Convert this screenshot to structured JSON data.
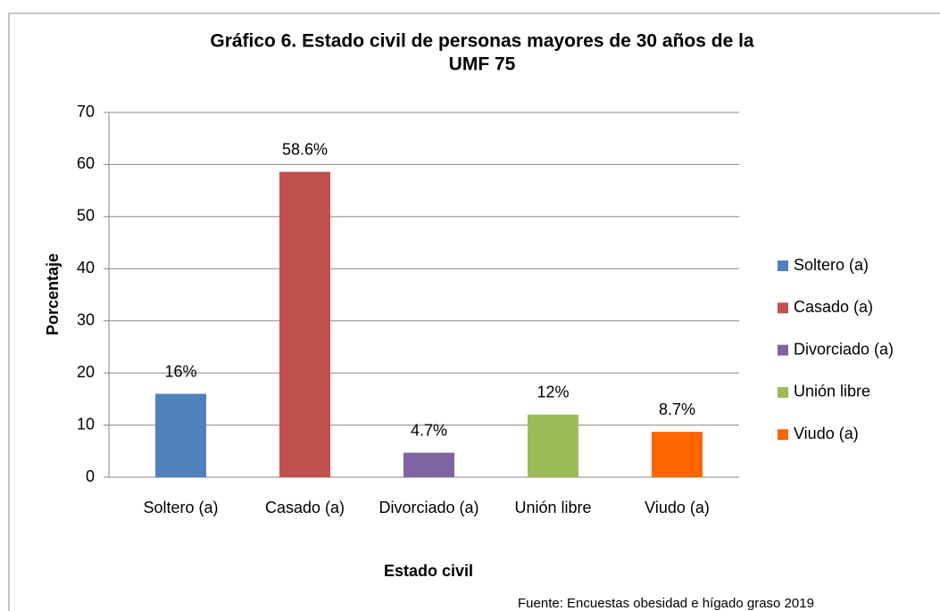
{
  "chart_data": {
    "type": "bar",
    "title": [
      "Gráfico 6. Estado civil de personas mayores de 30 años de la",
      "UMF 75"
    ],
    "x_label": "Estado civil",
    "y_label": "Porcentaje",
    "categories": [
      "Soltero (a)",
      "Casado (a)",
      "Divorciado (a)",
      "Unión libre",
      "Viudo (a)"
    ],
    "values": [
      16,
      58.6,
      4.7,
      12,
      8.7
    ],
    "value_labels": [
      "16%",
      "58.6%",
      "4.7%",
      "12%",
      "8.7%"
    ],
    "colors": [
      "#4f81bd",
      "#c0504d",
      "#8064a2",
      "#9bbb59",
      "#ff6600"
    ],
    "ylim": [
      0,
      70
    ],
    "yticks": [
      0,
      10,
      20,
      30,
      40,
      50,
      60,
      70
    ],
    "grid": true,
    "legend": "right",
    "source": "Fuente: Encuestas obesidad e hígado graso 2019"
  }
}
